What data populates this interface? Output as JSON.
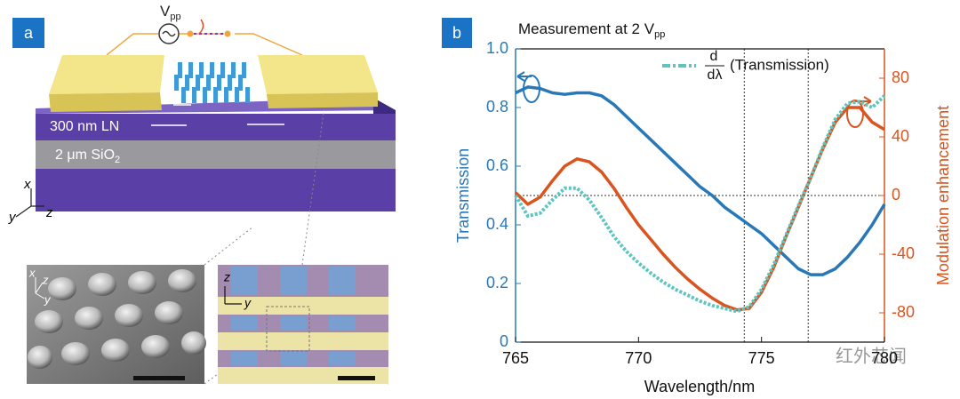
{
  "figure_a": {
    "panel_label": "a",
    "source_label": "V",
    "source_sub": "pp",
    "layer_ln": "300 nm LN",
    "layer_sio2": "2 μm SiO",
    "layer_sio2_sub": "2",
    "axis_x": "x",
    "axis_y": "y",
    "axis_z": "z",
    "sem_x": "x",
    "sem_z": "z",
    "sem_y": "y",
    "micro_z": "z",
    "micro_y": "y"
  },
  "chart_data": {
    "type": "line",
    "panel_label": "b",
    "title": "Measurement at 2 V",
    "title_sub": "pp",
    "xlabel": "Wavelength/nm",
    "ylabel": "Transmission",
    "y2label": "Modulation enhancement",
    "x": [
      765,
      765.5,
      766,
      766.5,
      767,
      767.5,
      768,
      768.5,
      769,
      769.5,
      770,
      770.5,
      771,
      771.5,
      772,
      772.5,
      773,
      773.5,
      774,
      774.5,
      775,
      775.5,
      776,
      776.5,
      777,
      777.5,
      778,
      778.5,
      779,
      779.5,
      780
    ],
    "series": [
      {
        "color": "#2878b8",
        "axis": "y",
        "style": "solid",
        "values": [
          0.85,
          0.87,
          0.865,
          0.85,
          0.845,
          0.85,
          0.85,
          0.84,
          0.81,
          0.77,
          0.73,
          0.69,
          0.65,
          0.61,
          0.57,
          0.53,
          0.5,
          0.46,
          0.43,
          0.4,
          0.37,
          0.33,
          0.29,
          0.25,
          0.23,
          0.23,
          0.25,
          0.29,
          0.34,
          0.4,
          0.47
        ]
      },
      {
        "color": "#d9541e",
        "axis": "y2",
        "style": "solid",
        "values": [
          2,
          -6,
          -1,
          10,
          20,
          25,
          23,
          16,
          5,
          -8,
          -20,
          -30,
          -40,
          -49,
          -57,
          -64,
          -70,
          -75,
          -78,
          -77,
          -66,
          -49,
          -28,
          -8,
          12,
          32,
          50,
          60,
          60,
          50,
          45
        ]
      },
      {
        "name": "(Transmission)",
        "name_numerator": "d",
        "name_denominator": "dλ",
        "color": "#5cc5bf",
        "axis": "y2",
        "style": "dotted",
        "values": [
          0,
          -14,
          -12,
          -3,
          5,
          5,
          -3,
          -15,
          -28,
          -38,
          -46,
          -53,
          -59,
          -64,
          -68,
          -72,
          -75,
          -77,
          -79,
          -76,
          -64,
          -47,
          -27,
          -7,
          12,
          33,
          52,
          63,
          64,
          60,
          68
        ]
      }
    ],
    "xlim": [
      765,
      780
    ],
    "xticks": [
      765,
      770,
      775,
      780
    ],
    "ylim": [
      0,
      1
    ],
    "yticks": [
      0,
      0.2,
      0.4,
      0.6,
      0.8,
      {
        "value": 1,
        "label": "1.0"
      }
    ],
    "y2lim": [
      -100,
      100
    ],
    "y2ticks": [
      -80,
      -40,
      0,
      40,
      80
    ],
    "reference_x": [
      774.3,
      776.9
    ],
    "reference_y2": 0,
    "watermark": "红外芯闻"
  }
}
